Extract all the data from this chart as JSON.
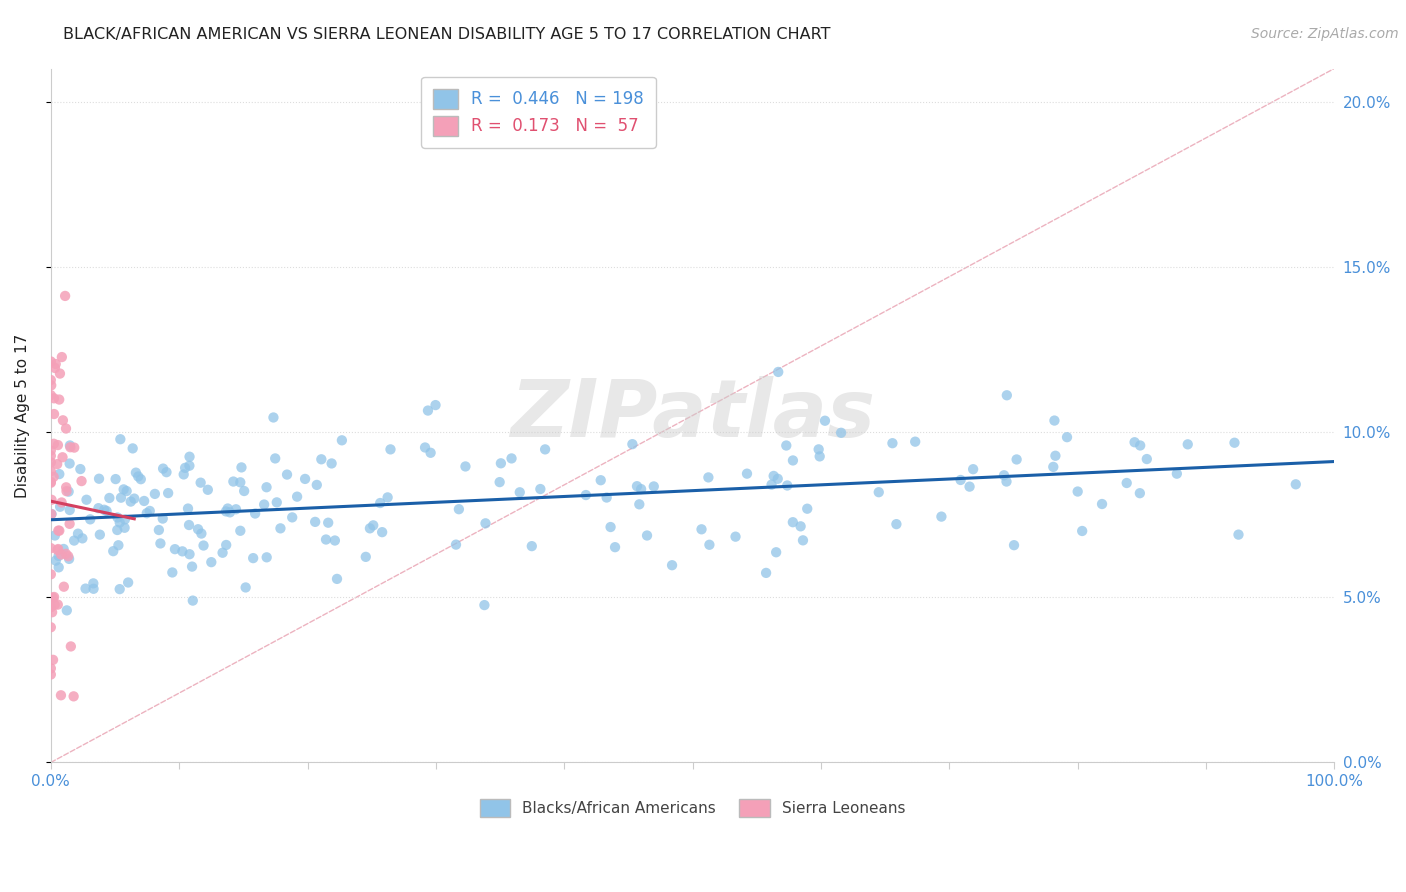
{
  "title": "BLACK/AFRICAN AMERICAN VS SIERRA LEONEAN DISABILITY AGE 5 TO 17 CORRELATION CHART",
  "source": "Source: ZipAtlas.com",
  "ylabel": "Disability Age 5 to 17",
  "xlim": [
    0,
    1.0
  ],
  "ylim": [
    0.0,
    0.21
  ],
  "xticks": [
    0.0,
    0.1,
    0.2,
    0.3,
    0.4,
    0.5,
    0.6,
    0.7,
    0.8,
    0.9,
    1.0
  ],
  "yticks": [
    0.0,
    0.05,
    0.1,
    0.15,
    0.2
  ],
  "R_blue": 0.446,
  "N_blue": 198,
  "R_pink": 0.173,
  "N_pink": 57,
  "blue_color": "#91c4e8",
  "pink_color": "#f4a0b8",
  "blue_trend_color": "#1a5fa8",
  "pink_trend_color": "#d44060",
  "diag_color": "#e8a0b0",
  "watermark": "ZIPatlas",
  "watermark_color": "#cccccc",
  "legend_label_blue": "Blacks/African Americans",
  "legend_label_pink": "Sierra Leoneans",
  "legend_R_blue_color": "#4a90d9",
  "legend_R_pink_color": "#e05070",
  "legend_N_blue_color": "#e05555",
  "legend_N_pink_color": "#e05555",
  "title_color": "#222222",
  "source_color": "#aaaaaa",
  "axis_label_color": "#222222",
  "tick_color": "#4a90d9",
  "grid_color": "#dddddd",
  "spine_color": "#cccccc"
}
